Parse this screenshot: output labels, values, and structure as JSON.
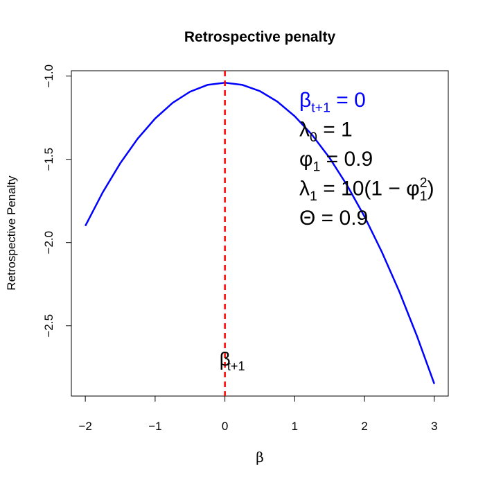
{
  "chart_data": {
    "type": "line",
    "title": "Retrospective penalty",
    "x_label": "β",
    "y_label": "Retrospective Penalty",
    "x": [
      -2,
      -1.75,
      -1.5,
      -1.25,
      -1,
      -0.75,
      -0.5,
      -0.25,
      0,
      0.25,
      0.5,
      0.75,
      1,
      1.25,
      1.5,
      1.75,
      2,
      2.25,
      2.5,
      2.75,
      3
    ],
    "series": [
      {
        "color": "#0000ff",
        "values": [
          -1.9,
          -1.698,
          -1.524,
          -1.376,
          -1.255,
          -1.161,
          -1.094,
          -1.053,
          -1.04,
          -1.053,
          -1.09,
          -1.153,
          -1.241,
          -1.354,
          -1.492,
          -1.656,
          -1.844,
          -2.058,
          -2.296,
          -2.56,
          -2.849
        ]
      }
    ],
    "xlim": [
      -2.2,
      3.2
    ],
    "ylim": [
      -2.922,
      -0.968
    ],
    "xticks": [
      {
        "value": -2,
        "label": "−2"
      },
      {
        "value": -1,
        "label": "−1"
      },
      0,
      1,
      2,
      3
    ],
    "yticks": [
      {
        "value": -1,
        "label": "−1.0"
      },
      {
        "value": -1.5,
        "label": "−1.5"
      },
      {
        "value": -2,
        "label": "−2.0"
      },
      {
        "value": -2.5,
        "label": "−2.5"
      }
    ],
    "vline": {
      "x": 0,
      "color": "#ff0000",
      "label": [
        {
          "text": "β"
        },
        {
          "sub": "t+1"
        }
      ]
    },
    "annotations": [
      {
        "color": "#0000ff",
        "parts": [
          {
            "text": "β"
          },
          {
            "sub": "t+1"
          },
          {
            "text": " = 0"
          }
        ]
      },
      {
        "color": "#000000",
        "parts": [
          {
            "text": "λ"
          },
          {
            "sub": "0"
          },
          {
            "text": " = 1"
          }
        ]
      },
      {
        "color": "#000000",
        "parts": [
          {
            "text": "φ"
          },
          {
            "sub": "1"
          },
          {
            "text": " = 0.9"
          }
        ]
      },
      {
        "color": "#000000",
        "parts": [
          {
            "text": "λ"
          },
          {
            "sub": "1"
          },
          {
            "text": " = 10(1 − φ"
          },
          {
            "sub": "1"
          },
          {
            "sup": "2"
          },
          {
            "text": ")"
          }
        ]
      },
      {
        "color": "#000000",
        "parts": [
          {
            "text": "Θ"
          },
          {
            "text": " = 0.9"
          }
        ]
      }
    ]
  }
}
